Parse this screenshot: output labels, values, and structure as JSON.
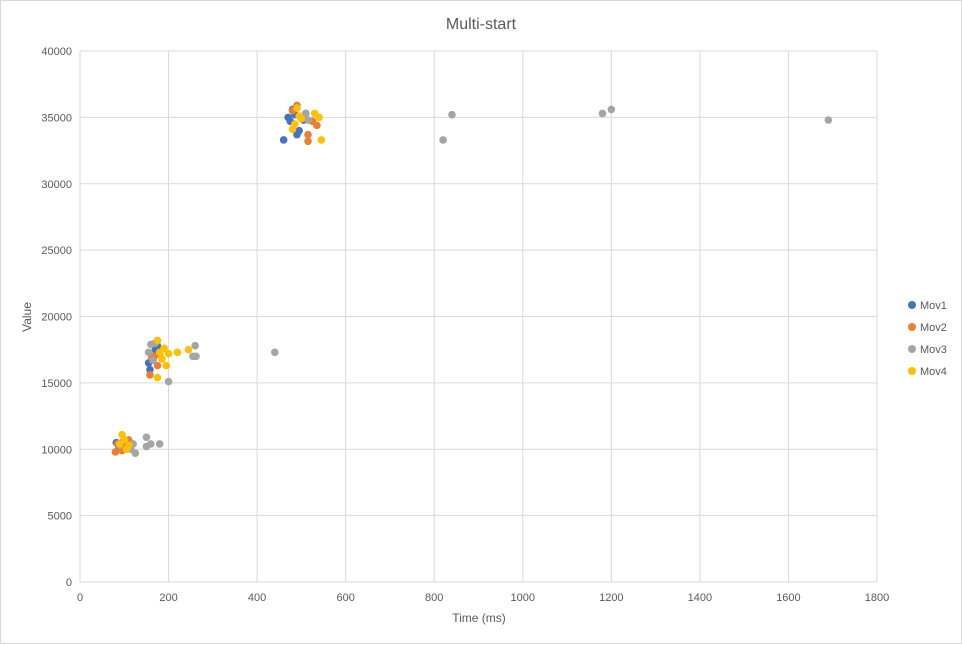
{
  "chart_data": {
    "type": "scatter",
    "title": "Multi-start",
    "xlabel": "Time (ms)",
    "ylabel": "Value",
    "xlim": [
      0,
      1800
    ],
    "ylim": [
      0,
      40000
    ],
    "xticks": [
      0,
      200,
      400,
      600,
      800,
      1000,
      1200,
      1400,
      1600,
      1800
    ],
    "yticks": [
      0,
      5000,
      10000,
      15000,
      20000,
      25000,
      30000,
      35000,
      40000
    ],
    "grid": true,
    "legend_position": "right",
    "series": [
      {
        "name": "Mov1",
        "color": "#4472c4",
        "points": [
          [
            82,
            10500
          ],
          [
            88,
            10200
          ],
          [
            92,
            10000
          ],
          [
            98,
            10600
          ],
          [
            105,
            10300
          ],
          [
            155,
            16500
          ],
          [
            158,
            16000
          ],
          [
            165,
            16800
          ],
          [
            170,
            17500
          ],
          [
            175,
            17800
          ],
          [
            460,
            33300
          ],
          [
            470,
            35000
          ],
          [
            475,
            34700
          ],
          [
            480,
            35600
          ],
          [
            485,
            35200
          ],
          [
            490,
            33700
          ],
          [
            495,
            34000
          ],
          [
            505,
            34800
          ],
          [
            510,
            35300
          ]
        ]
      },
      {
        "name": "Mov2",
        "color": "#ed7d31",
        "points": [
          [
            80,
            9800
          ],
          [
            85,
            10400
          ],
          [
            95,
            9900
          ],
          [
            100,
            10100
          ],
          [
            110,
            10700
          ],
          [
            158,
            15600
          ],
          [
            162,
            16900
          ],
          [
            168,
            17000
          ],
          [
            175,
            16300
          ],
          [
            180,
            17200
          ],
          [
            480,
            35500
          ],
          [
            490,
            35900
          ],
          [
            500,
            35000
          ],
          [
            515,
            33700
          ],
          [
            515,
            33200
          ],
          [
            525,
            34700
          ],
          [
            535,
            34400
          ]
        ]
      },
      {
        "name": "Mov3",
        "color": "#a5a5a5",
        "points": [
          [
            90,
            10300
          ],
          [
            115,
            10000
          ],
          [
            120,
            10400
          ],
          [
            125,
            9700
          ],
          [
            150,
            10900
          ],
          [
            150,
            10200
          ],
          [
            160,
            10400
          ],
          [
            180,
            10400
          ],
          [
            155,
            17300
          ],
          [
            160,
            17900
          ],
          [
            165,
            16700
          ],
          [
            170,
            18000
          ],
          [
            200,
            15100
          ],
          [
            255,
            17000
          ],
          [
            260,
            17800
          ],
          [
            262,
            17000
          ],
          [
            440,
            17300
          ],
          [
            510,
            35300
          ],
          [
            515,
            34800
          ],
          [
            820,
            33300
          ],
          [
            840,
            35200
          ],
          [
            1180,
            35300
          ],
          [
            1200,
            35600
          ],
          [
            1690,
            34800
          ]
        ]
      },
      {
        "name": "Mov4",
        "color": "#ffc000",
        "points": [
          [
            90,
            10400
          ],
          [
            95,
            11100
          ],
          [
            100,
            10700
          ],
          [
            105,
            10000
          ],
          [
            110,
            10300
          ],
          [
            175,
            15400
          ],
          [
            175,
            18200
          ],
          [
            180,
            17300
          ],
          [
            185,
            16800
          ],
          [
            190,
            17600
          ],
          [
            195,
            16300
          ],
          [
            200,
            17200
          ],
          [
            220,
            17300
          ],
          [
            245,
            17500
          ],
          [
            480,
            34100
          ],
          [
            485,
            34500
          ],
          [
            490,
            35700
          ],
          [
            495,
            35100
          ],
          [
            500,
            34900
          ],
          [
            530,
            35300
          ],
          [
            540,
            35000
          ],
          [
            545,
            33300
          ]
        ]
      }
    ]
  }
}
